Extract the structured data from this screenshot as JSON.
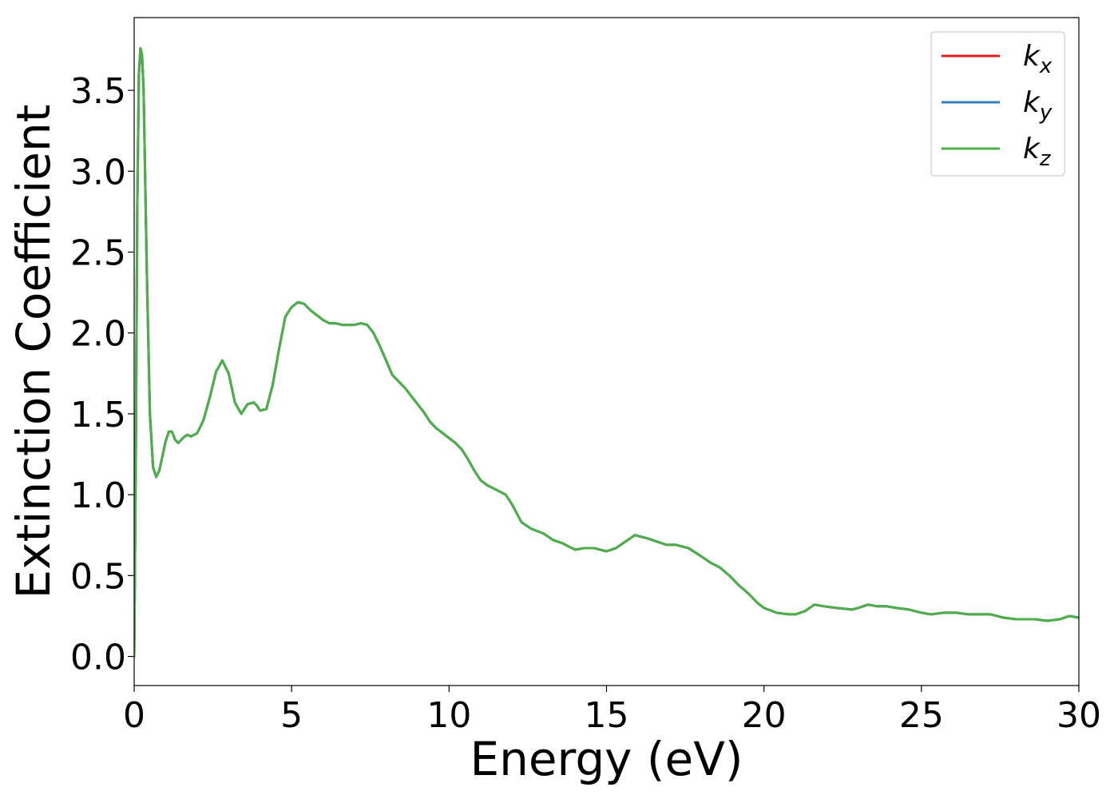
{
  "chart_data": {
    "type": "line",
    "xlabel": "Energy (eV)",
    "ylabel": "Extinction Coefficient",
    "xlim": [
      0,
      30
    ],
    "ylim": [
      -0.18,
      3.95
    ],
    "xticks": [
      0,
      5,
      10,
      15,
      20,
      25,
      30
    ],
    "xtick_labels": [
      "0",
      "5",
      "10",
      "15",
      "20",
      "25",
      "30"
    ],
    "yticks": [
      0.0,
      0.5,
      1.0,
      1.5,
      2.0,
      2.5,
      3.0,
      3.5
    ],
    "ytick_labels": [
      "0.0",
      "0.5",
      "1.0",
      "1.5",
      "2.0",
      "2.5",
      "3.0",
      "3.5"
    ],
    "grid": false,
    "legend_position": "top-right",
    "x": [
      0,
      0.05,
      0.1,
      0.15,
      0.2,
      0.25,
      0.3,
      0.4,
      0.5,
      0.6,
      0.7,
      0.8,
      0.9,
      1.0,
      1.1,
      1.2,
      1.3,
      1.4,
      1.5,
      1.6,
      1.7,
      1.8,
      1.9,
      2.0,
      2.2,
      2.4,
      2.6,
      2.8,
      3.0,
      3.2,
      3.4,
      3.6,
      3.8,
      3.9,
      4.0,
      4.2,
      4.4,
      4.6,
      4.8,
      5.0,
      5.2,
      5.4,
      5.6,
      5.8,
      6.0,
      6.2,
      6.4,
      6.6,
      6.8,
      7.0,
      7.2,
      7.4,
      7.6,
      7.8,
      8.0,
      8.2,
      8.4,
      8.6,
      8.8,
      9.0,
      9.2,
      9.4,
      9.6,
      9.8,
      10.0,
      10.2,
      10.4,
      10.6,
      10.8,
      11.0,
      11.2,
      11.5,
      11.8,
      12.0,
      12.3,
      12.6,
      13.0,
      13.3,
      13.6,
      13.8,
      14.0,
      14.3,
      14.6,
      15.0,
      15.3,
      15.6,
      15.9,
      16.3,
      16.6,
      16.9,
      17.2,
      17.6,
      18.0,
      18.3,
      18.6,
      18.9,
      19.2,
      19.5,
      19.8,
      20.0,
      20.4,
      20.8,
      21.0,
      21.3,
      21.6,
      21.9,
      22.3,
      22.8,
      23.0,
      23.3,
      23.6,
      23.9,
      24.2,
      24.6,
      25.0,
      25.3,
      25.7,
      26.1,
      26.5,
      26.8,
      27.2,
      27.6,
      28.0,
      28.3,
      28.6,
      29.0,
      29.4,
      29.7,
      30.0
    ],
    "series": [
      {
        "name": "k_x",
        "label_main": "k",
        "label_sub": "x",
        "color": "#e41a1c",
        "values": [
          0.0,
          1.2,
          2.8,
          3.6,
          3.76,
          3.72,
          3.5,
          2.4,
          1.5,
          1.17,
          1.11,
          1.15,
          1.24,
          1.33,
          1.39,
          1.39,
          1.34,
          1.32,
          1.34,
          1.36,
          1.37,
          1.36,
          1.37,
          1.38,
          1.46,
          1.6,
          1.76,
          1.83,
          1.75,
          1.57,
          1.5,
          1.56,
          1.57,
          1.55,
          1.52,
          1.53,
          1.68,
          1.9,
          2.1,
          2.16,
          2.19,
          2.18,
          2.14,
          2.11,
          2.08,
          2.06,
          2.06,
          2.05,
          2.05,
          2.05,
          2.06,
          2.05,
          2.0,
          1.92,
          1.83,
          1.74,
          1.7,
          1.66,
          1.61,
          1.56,
          1.51,
          1.45,
          1.41,
          1.38,
          1.35,
          1.32,
          1.28,
          1.22,
          1.15,
          1.09,
          1.06,
          1.03,
          1.0,
          0.94,
          0.83,
          0.79,
          0.76,
          0.72,
          0.7,
          0.68,
          0.66,
          0.67,
          0.67,
          0.65,
          0.67,
          0.71,
          0.75,
          0.73,
          0.71,
          0.69,
          0.69,
          0.67,
          0.62,
          0.58,
          0.55,
          0.5,
          0.44,
          0.39,
          0.33,
          0.3,
          0.27,
          0.26,
          0.26,
          0.28,
          0.32,
          0.31,
          0.3,
          0.29,
          0.3,
          0.32,
          0.31,
          0.31,
          0.3,
          0.29,
          0.27,
          0.26,
          0.27,
          0.27,
          0.26,
          0.26,
          0.26,
          0.24,
          0.23,
          0.23,
          0.23,
          0.22,
          0.23,
          0.25,
          0.24
        ]
      },
      {
        "name": "k_y",
        "label_main": "k",
        "label_sub": "y",
        "color": "#377eb8",
        "values": [
          0.0,
          1.2,
          2.8,
          3.6,
          3.76,
          3.72,
          3.5,
          2.4,
          1.5,
          1.17,
          1.11,
          1.15,
          1.24,
          1.33,
          1.39,
          1.39,
          1.34,
          1.32,
          1.34,
          1.36,
          1.37,
          1.36,
          1.37,
          1.38,
          1.46,
          1.6,
          1.76,
          1.83,
          1.75,
          1.57,
          1.5,
          1.56,
          1.57,
          1.55,
          1.52,
          1.53,
          1.68,
          1.9,
          2.1,
          2.16,
          2.19,
          2.18,
          2.14,
          2.11,
          2.08,
          2.06,
          2.06,
          2.05,
          2.05,
          2.05,
          2.06,
          2.05,
          2.0,
          1.92,
          1.83,
          1.74,
          1.7,
          1.66,
          1.61,
          1.56,
          1.51,
          1.45,
          1.41,
          1.38,
          1.35,
          1.32,
          1.28,
          1.22,
          1.15,
          1.09,
          1.06,
          1.03,
          1.0,
          0.94,
          0.83,
          0.79,
          0.76,
          0.72,
          0.7,
          0.68,
          0.66,
          0.67,
          0.67,
          0.65,
          0.67,
          0.71,
          0.75,
          0.73,
          0.71,
          0.69,
          0.69,
          0.67,
          0.62,
          0.58,
          0.55,
          0.5,
          0.44,
          0.39,
          0.33,
          0.3,
          0.27,
          0.26,
          0.26,
          0.28,
          0.32,
          0.31,
          0.3,
          0.29,
          0.3,
          0.32,
          0.31,
          0.31,
          0.3,
          0.29,
          0.27,
          0.26,
          0.27,
          0.27,
          0.26,
          0.26,
          0.26,
          0.24,
          0.23,
          0.23,
          0.23,
          0.22,
          0.23,
          0.25,
          0.24
        ]
      },
      {
        "name": "k_z",
        "label_main": "k",
        "label_sub": "z",
        "color": "#4daf4a",
        "values": [
          0.0,
          1.2,
          2.8,
          3.6,
          3.76,
          3.72,
          3.5,
          2.4,
          1.5,
          1.17,
          1.11,
          1.15,
          1.24,
          1.33,
          1.39,
          1.39,
          1.34,
          1.32,
          1.34,
          1.36,
          1.37,
          1.36,
          1.37,
          1.38,
          1.46,
          1.6,
          1.76,
          1.83,
          1.75,
          1.57,
          1.5,
          1.56,
          1.57,
          1.55,
          1.52,
          1.53,
          1.68,
          1.9,
          2.1,
          2.16,
          2.19,
          2.18,
          2.14,
          2.11,
          2.08,
          2.06,
          2.06,
          2.05,
          2.05,
          2.05,
          2.06,
          2.05,
          2.0,
          1.92,
          1.83,
          1.74,
          1.7,
          1.66,
          1.61,
          1.56,
          1.51,
          1.45,
          1.41,
          1.38,
          1.35,
          1.32,
          1.28,
          1.22,
          1.15,
          1.09,
          1.06,
          1.03,
          1.0,
          0.94,
          0.83,
          0.79,
          0.76,
          0.72,
          0.7,
          0.68,
          0.66,
          0.67,
          0.67,
          0.65,
          0.67,
          0.71,
          0.75,
          0.73,
          0.71,
          0.69,
          0.69,
          0.67,
          0.62,
          0.58,
          0.55,
          0.5,
          0.44,
          0.39,
          0.33,
          0.3,
          0.27,
          0.26,
          0.26,
          0.28,
          0.32,
          0.31,
          0.3,
          0.29,
          0.3,
          0.32,
          0.31,
          0.31,
          0.3,
          0.29,
          0.27,
          0.26,
          0.27,
          0.27,
          0.26,
          0.26,
          0.26,
          0.24,
          0.23,
          0.23,
          0.23,
          0.22,
          0.23,
          0.25,
          0.24
        ]
      }
    ]
  }
}
